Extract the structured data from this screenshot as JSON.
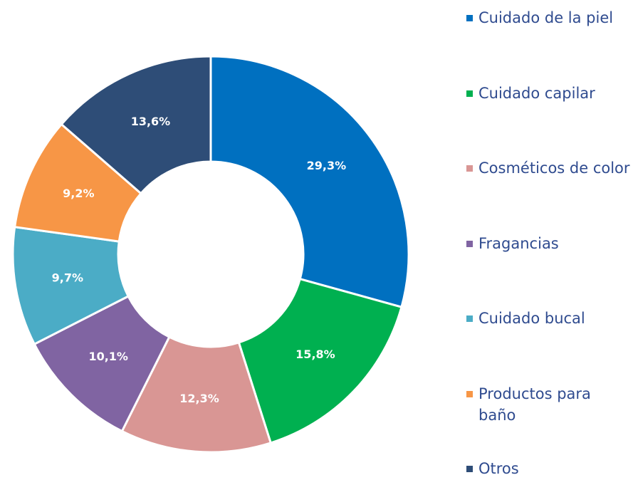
{
  "chart_data": {
    "type": "pie",
    "categories": [
      "Cuidado de la piel",
      "Cuidado capilar",
      "Cosméticos de color",
      "Fragancias",
      "Cuidado bucal",
      "Productos para baño",
      "Otros"
    ],
    "values": [
      29.3,
      15.8,
      12.3,
      10.1,
      9.7,
      9.2,
      13.6
    ],
    "value_labels": [
      "29,3%",
      "15,8%",
      "12,3%",
      "10,1%",
      "9,7%",
      "9,2%",
      "13,6%"
    ],
    "colors": [
      "#0070c0",
      "#00b050",
      "#d99694",
      "#8064a2",
      "#4bacc6",
      "#f79646",
      "#2e4d77"
    ],
    "donut": true,
    "legend": "right"
  }
}
